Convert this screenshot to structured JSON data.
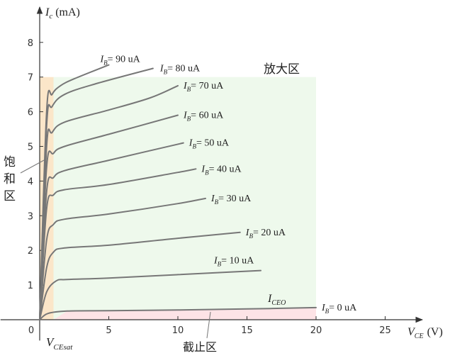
{
  "chart_data": {
    "type": "line",
    "title": "",
    "xlabel_main": "V",
    "xlabel_sub": "CE",
    "xlabel_unit": "(V)",
    "ylabel_main": "I",
    "ylabel_sub": "c",
    "ylabel_unit": "(mA)",
    "xlim": [
      -1.5,
      28
    ],
    "ylim": [
      -0.6,
      8.9
    ],
    "x_ticks": [
      0,
      5,
      10,
      15,
      20,
      25
    ],
    "y_ticks": [
      1,
      2,
      3,
      4,
      5,
      6,
      7,
      8
    ],
    "origin_label": "0",
    "grid": false,
    "regions": {
      "saturation": {
        "label_chars": [
          "饱",
          "和",
          "区"
        ],
        "x": [
          0,
          1
        ],
        "y": [
          0,
          7
        ],
        "color": "#fbe6c9"
      },
      "active": {
        "label": "放大区",
        "x": [
          1,
          20
        ],
        "y": [
          0,
          7
        ],
        "color": "#eef9ec"
      },
      "cutoff": {
        "label": "截止区",
        "x": [
          1,
          20
        ],
        "y": [
          0,
          0.33
        ],
        "color": "#fde3e6"
      }
    },
    "vcesat_label": {
      "main": "V",
      "sub": "CEsat"
    },
    "iceo_label": {
      "main": "I",
      "sub": "CEO"
    },
    "series": [
      {
        "name": "I_B= 0 uA",
        "label_main": "I",
        "label_sub": "B",
        "label_rest": "= 0 uA",
        "x": [
          0,
          0.6,
          2,
          5,
          10,
          15,
          20
        ],
        "y": [
          0,
          0.18,
          0.25,
          0.26,
          0.28,
          0.31,
          0.35
        ]
      },
      {
        "name": "I_B= 10 uA",
        "label_main": "I",
        "label_sub": "B",
        "label_rest": "= 10 uA",
        "x": [
          0,
          0.5,
          1.2,
          2,
          5,
          10,
          16
        ],
        "y": [
          0,
          0.8,
          1.12,
          1.16,
          1.2,
          1.3,
          1.42
        ]
      },
      {
        "name": "I_B= 20 uA",
        "label_main": "I",
        "label_sub": "B",
        "label_rest": "= 20 uA",
        "x": [
          0,
          0.5,
          1,
          1.8,
          5,
          10,
          14.5
        ],
        "y": [
          0,
          1.5,
          1.95,
          2.07,
          2.15,
          2.35,
          2.52
        ]
      },
      {
        "name": "I_B= 30 uA",
        "label_main": "I",
        "label_sub": "B",
        "label_rest": "= 30 uA",
        "x": [
          0,
          0.5,
          1,
          1.8,
          5,
          10,
          12
        ],
        "y": [
          0,
          2.3,
          2.75,
          2.9,
          3.05,
          3.35,
          3.5
        ]
      },
      {
        "name": "I_B= 40 uA",
        "label_main": "I",
        "label_sub": "B",
        "label_rest": "= 40 uA",
        "x": [
          0,
          0.5,
          1,
          1.8,
          5,
          10,
          11.3
        ],
        "y": [
          0,
          3.2,
          3.6,
          3.75,
          3.9,
          4.25,
          4.35
        ]
      },
      {
        "name": "I_B= 50 uA",
        "label_main": "I",
        "label_sub": "B",
        "label_rest": "= 50 uA",
        "x": [
          0,
          0.5,
          1,
          1.8,
          5,
          10.4
        ],
        "y": [
          0,
          3.7,
          4.1,
          4.3,
          4.6,
          5.1
        ]
      },
      {
        "name": "I_B= 60 uA",
        "label_main": "I",
        "label_sub": "B",
        "label_rest": "= 60 uA",
        "x": [
          0,
          0.5,
          1,
          1.8,
          5,
          10
        ],
        "y": [
          0,
          4.4,
          4.8,
          5.0,
          5.35,
          5.9
        ]
      },
      {
        "name": "I_B= 70 uA",
        "label_main": "I",
        "label_sub": "B",
        "label_rest": "= 70 uA",
        "x": [
          0,
          0.5,
          0.9,
          1.8,
          5,
          8,
          10
        ],
        "y": [
          0,
          5.0,
          5.4,
          5.7,
          6.05,
          6.4,
          6.75
        ]
      },
      {
        "name": "I_B= 80 uA",
        "label_main": "I",
        "label_sub": "B",
        "label_rest": "= 80 uA",
        "x": [
          0,
          0.5,
          0.9,
          1.8,
          4,
          8.2
        ],
        "y": [
          0,
          5.6,
          6.15,
          6.5,
          6.8,
          7.25
        ]
      },
      {
        "name": "I_B= 90 uA",
        "label_main": "I",
        "label_sub": "B",
        "label_rest": "= 90 uA",
        "x": [
          0,
          0.5,
          0.9,
          1.5,
          2.5,
          5
        ],
        "y": [
          0,
          6.0,
          6.5,
          6.75,
          6.95,
          7.35
        ]
      }
    ]
  }
}
